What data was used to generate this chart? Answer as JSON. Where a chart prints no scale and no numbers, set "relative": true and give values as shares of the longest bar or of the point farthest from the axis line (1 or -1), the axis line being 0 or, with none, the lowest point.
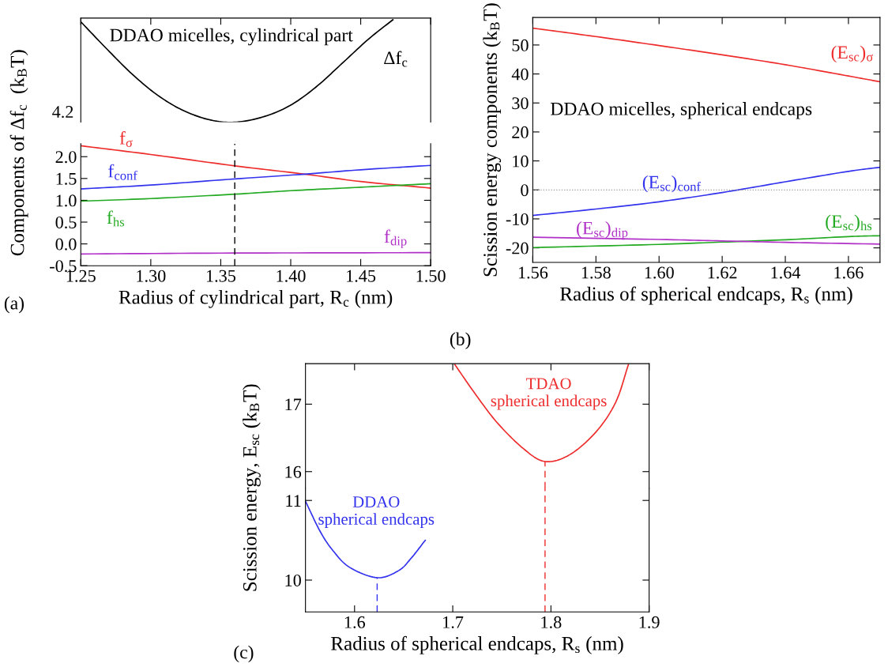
{
  "chart_data": [
    {
      "type": "line",
      "relative": true,
      "annotations": [
        "DDAO micelles, cylindrical part",
        "4.2"
      ],
      "xlim": [
        1.25,
        1.5
      ],
      "tick_labels": false,
      "grid": false,
      "legend": false,
      "series": [
        {
          "name": "Δf$_{c}$",
          "color": "#000000",
          "x": [
            1.25,
            1.2675,
            1.2866,
            1.3052,
            1.3238,
            1.3429,
            1.3604,
            1.38,
            1.3992,
            1.4178,
            1.4364,
            1.4555,
            1.473
          ],
          "values": [
            0.98,
            0.73,
            0.47,
            0.26,
            0.11,
            0.02,
            0,
            0.05,
            0.16,
            0.34,
            0.57,
            0.81,
            1
          ]
        }
      ]
    },
    {
      "type": "line",
      "annotations": [
        "(a)"
      ],
      "xlabel": "Radius of cylindrical part, R$_{c}$ (nm)",
      "ylabel": "Components of Δf$_{c}$  (k$_{B}$T)",
      "xlim": [
        1.25,
        1.5
      ],
      "xticks": [
        {
          "value": 1.25,
          "label": "1.25"
        },
        {
          "value": 1.3,
          "label": "1.30"
        },
        {
          "value": 1.35,
          "label": "1.35"
        },
        {
          "value": 1.4,
          "label": "1.40"
        },
        {
          "value": 1.45,
          "label": "1.45"
        },
        {
          "value": 1.5,
          "label": "1.50"
        }
      ],
      "ylim": [
        -0.5,
        2.3
      ],
      "yticks": [
        -0.5,
        {
          "value": 0,
          "label": "0.0"
        },
        0.5,
        {
          "value": 1,
          "label": "1.0"
        },
        1.5,
        {
          "value": 2,
          "label": "2.0"
        }
      ],
      "grid": false,
      "legend": false,
      "series": [
        {
          "name": "f$_{σ}$",
          "color": "#ee2c2c",
          "x": [
            1.25,
            1.3,
            1.36,
            1.41,
            1.45,
            1.5
          ],
          "values": [
            2.25,
            2.05,
            1.79,
            1.6,
            1.43,
            1.28
          ]
        },
        {
          "name": "f$_{conf}$",
          "color": "#3333ee",
          "x": [
            1.25,
            1.3,
            1.36,
            1.41,
            1.45,
            1.5
          ],
          "values": [
            1.26,
            1.35,
            1.49,
            1.6,
            1.7,
            1.8
          ]
        },
        {
          "name": "f$_{hs}$",
          "color": "#22aa22",
          "x": [
            1.25,
            1.3,
            1.36,
            1.4,
            1.45,
            1.5
          ],
          "values": [
            0.98,
            1.04,
            1.14,
            1.22,
            1.3,
            1.38
          ]
        },
        {
          "name": "f$_{dip}$",
          "color": "#b030c8",
          "x": [
            1.25,
            1.36,
            1.5
          ],
          "values": [
            -0.23,
            -0.21,
            -0.2
          ]
        },
        {
          "color": "#000000",
          "line_style": "dashed",
          "x": [
            1.36,
            1.36
          ],
          "values": [
            -0.5,
            2.3
          ]
        }
      ]
    },
    {
      "type": "line",
      "annotations": [
        "DDAO micelles, spherical endcaps",
        "(b)"
      ],
      "xlabel": "Radius of spherical endcaps, R$_{s}$ (nm)",
      "ylabel": "Scission energy components (k$_{B}$T)",
      "xlim": [
        1.56,
        1.67
      ],
      "xticks": [
        1.56,
        1.58,
        {
          "value": 1.6,
          "label": "1.60"
        },
        1.62,
        1.64,
        1.66
      ],
      "ylim": [
        -25,
        59.5
      ],
      "yticks": [
        -20,
        -10,
        0,
        10,
        20,
        30,
        40,
        50
      ],
      "grid": false,
      "legend": false,
      "ref_lines": [
        {
          "axis": "y",
          "value": 0,
          "color": "#999999",
          "line_style": "dotted"
        }
      ],
      "series": [
        {
          "name": "(E$_{sc}$)$_{σ}$",
          "color": "#ee2c2c",
          "x": [
            1.56,
            1.58,
            1.6,
            1.62,
            1.64,
            1.66,
            1.67
          ],
          "values": [
            55.8,
            52.9,
            49.8,
            46.6,
            43.2,
            39.3,
            37.3
          ]
        },
        {
          "name": "(E$_{sc}$)$_{conf}$",
          "color": "#3333ee",
          "x": [
            1.56,
            1.58,
            1.6,
            1.62,
            1.64,
            1.66,
            1.67
          ],
          "values": [
            -8.8,
            -6.6,
            -4.1,
            -0.9,
            2.8,
            6.4,
            7.8
          ]
        },
        {
          "name": "(E$_{sc}$)$_{hs}$",
          "color": "#22aa22",
          "x": [
            1.56,
            1.6,
            1.62,
            1.64,
            1.66,
            1.67
          ],
          "values": [
            -19.9,
            -18.8,
            -18.0,
            -17.2,
            -16.1,
            -15.8
          ]
        },
        {
          "name": "(E$_{sc}$)$_{dip}$",
          "color": "#b030c8",
          "x": [
            1.56,
            1.6,
            1.62,
            1.64,
            1.67
          ],
          "values": [
            -16.3,
            -17.1,
            -17.6,
            -18.1,
            -18.7
          ]
        }
      ]
    },
    {
      "type": "line",
      "xlim": [
        1.55,
        1.9
      ],
      "ylim": [
        15.75,
        17.6
      ],
      "yticks": [
        16,
        17
      ],
      "tick_labels": "y",
      "grid": false,
      "legend": false,
      "series": [
        {
          "name": "TDAO\nspherical endcaps",
          "color": "#ee2c2c",
          "x": [
            1.702,
            1.722,
            1.745,
            1.772,
            1.794,
            1.819,
            1.846,
            1.866,
            1.879
          ],
          "values": [
            17.59,
            17.17,
            16.73,
            16.34,
            16.15,
            16.25,
            16.59,
            17.03,
            17.59
          ]
        },
        {
          "color": "#ee2c2c",
          "line_style": "dashed",
          "x": [
            1.794,
            1.794
          ],
          "values": [
            15.75,
            16.15
          ]
        }
      ]
    },
    {
      "type": "line",
      "annotations": [
        "(c)"
      ],
      "xlabel": "Radius of spherical endcaps, R$_{s}$ (nm)",
      "ylabel": "Scission energy, E$_{sc}$ (k$_{B}$T)",
      "xlim": [
        1.55,
        1.9
      ],
      "xticks": [
        1.6,
        1.7,
        1.8,
        1.9
      ],
      "ylim": [
        9.6,
        11.15
      ],
      "yticks": [
        10,
        11
      ],
      "grid": false,
      "legend": false,
      "series": [
        {
          "name": "DDAO\nspherical endcaps",
          "color": "#3333ee",
          "x": [
            1.55,
            1.565,
            1.578,
            1.595,
            1.623,
            1.645,
            1.658,
            1.672
          ],
          "values": [
            10.99,
            10.61,
            10.37,
            10.16,
            10.03,
            10.12,
            10.28,
            10.5
          ]
        },
        {
          "color": "#3333ee",
          "line_style": "dashed",
          "x": [
            1.623,
            1.623
          ],
          "values": [
            9.6,
            10.03
          ]
        },
        {
          "color": "#ee2c2c",
          "line_style": "dashed",
          "x": [
            1.794,
            1.794
          ],
          "values": [
            9.6,
            11.15
          ]
        }
      ]
    }
  ]
}
